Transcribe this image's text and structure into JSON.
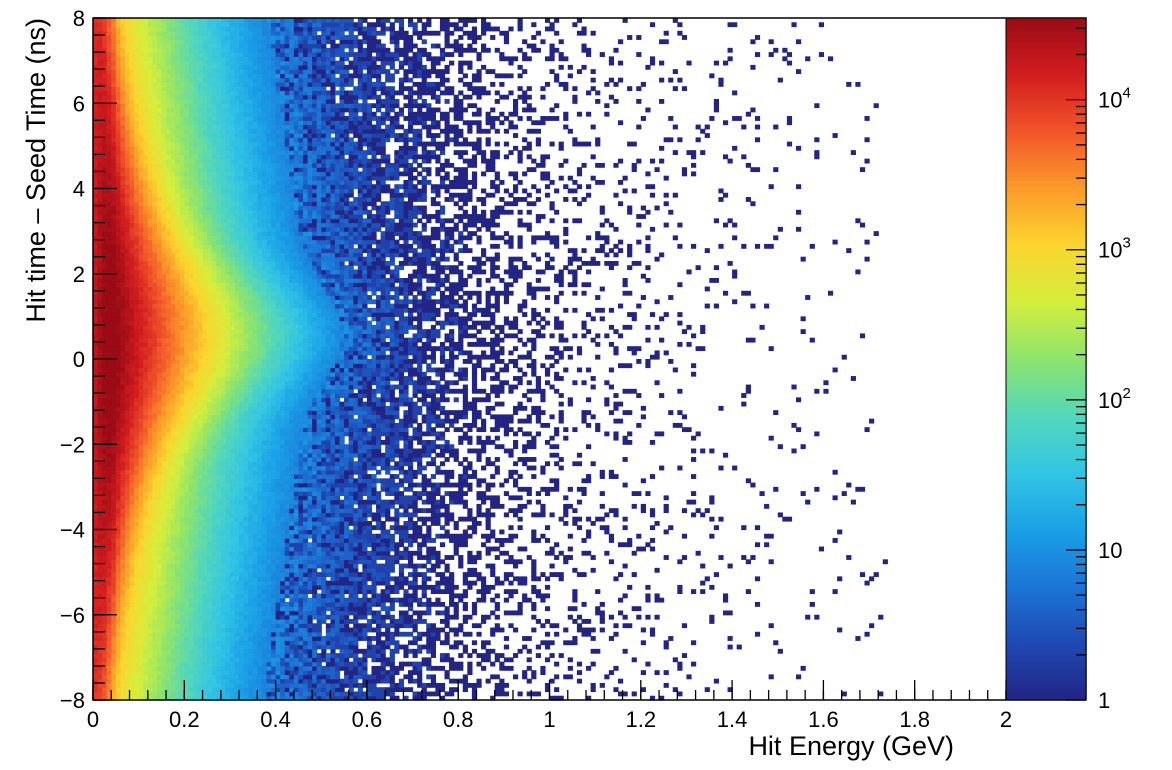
{
  "chart_data": {
    "type": "heatmap",
    "title": "",
    "xlabel": "Hit Energy (GeV)",
    "ylabel": "Hit time – Seed Time (ns)",
    "xlim": [
      0,
      2
    ],
    "ylim": [
      -8,
      8
    ],
    "x_ticks": [
      {
        "value": 0,
        "label": "0"
      },
      {
        "value": 0.2,
        "label": "0.2"
      },
      {
        "value": 0.4,
        "label": "0.4"
      },
      {
        "value": 0.6,
        "label": "0.6"
      },
      {
        "value": 0.8,
        "label": "0.8"
      },
      {
        "value": 1,
        "label": "1"
      },
      {
        "value": 1.2,
        "label": "1.2"
      },
      {
        "value": 1.4,
        "label": "1.4"
      },
      {
        "value": 1.6,
        "label": "1.6"
      },
      {
        "value": 1.8,
        "label": "1.8"
      },
      {
        "value": 2,
        "label": "2"
      }
    ],
    "y_ticks": [
      {
        "value": 8,
        "label": "8"
      },
      {
        "value": 6,
        "label": "6"
      },
      {
        "value": 4,
        "label": "4"
      },
      {
        "value": 2,
        "label": "2"
      },
      {
        "value": 0,
        "label": "0"
      },
      {
        "value": -2,
        "label": "−2"
      },
      {
        "value": -4,
        "label": "−4"
      },
      {
        "value": -6,
        "label": "−6"
      },
      {
        "value": -8,
        "label": "−8"
      }
    ],
    "colorbar": {
      "scale": "log",
      "range": [
        1,
        35000
      ],
      "ticks": [
        {
          "value": 1,
          "label": "1"
        },
        {
          "value": 10,
          "label": "10"
        },
        {
          "value": 100,
          "label": "10",
          "exp": "2"
        },
        {
          "value": 1000,
          "label": "10",
          "exp": "3"
        },
        {
          "value": 10000,
          "label": "10",
          "exp": "4"
        }
      ],
      "colors": [
        "#232585",
        "#1f49b4",
        "#1c75d6",
        "#1aa1e7",
        "#33c5e4",
        "#54d7b9",
        "#8de46d",
        "#d4ee3d",
        "#fbd52f",
        "#fb9a2a",
        "#f2552a",
        "#d21d1f",
        "#9a0b15"
      ]
    },
    "distribution": {
      "description_values": "peak near x=0.05 GeV and y=0.5 ns; funnel narrowing toward y=0.5 ns as energy rises; noise extends to about 1.7 GeV",
      "peak_counts": 35000,
      "x_bins": 200,
      "y_bins": 160
    },
    "grid": false,
    "legend": "colorbar-right"
  }
}
